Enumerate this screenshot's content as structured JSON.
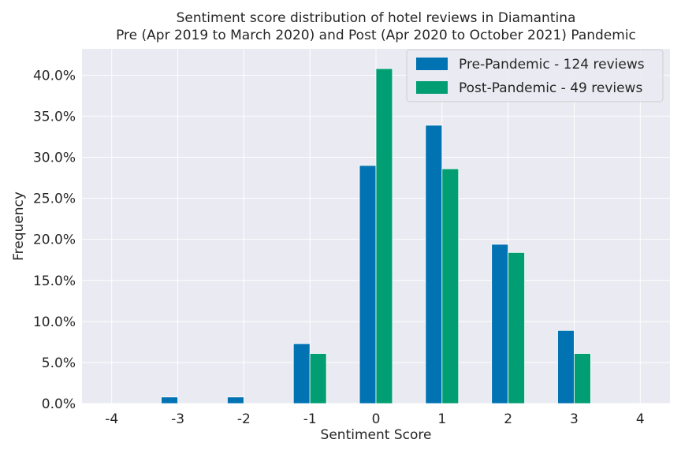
{
  "chart_data": {
    "type": "bar",
    "title_line1": "Sentiment score distribution of hotel reviews in Diamantina",
    "title_line2": "Pre (Apr 2019 to March 2020) and Post (Apr 2020 to October 2021) Pandemic",
    "xlabel": "Sentiment Score",
    "ylabel": "Frequency",
    "x": [
      -4,
      -3,
      -2,
      -1,
      0,
      1,
      2,
      3,
      4
    ],
    "x_tick_labels": [
      "-4",
      "-3",
      "-2",
      "-1",
      "0",
      "1",
      "2",
      "3",
      "4"
    ],
    "xlim": [
      -4.45,
      4.45
    ],
    "ylim": [
      0,
      43.2
    ],
    "y_ticks": [
      0,
      5,
      10,
      15,
      20,
      25,
      30,
      35,
      40
    ],
    "y_tick_labels": [
      "0.0%",
      "5.0%",
      "10.0%",
      "15.0%",
      "20.0%",
      "25.0%",
      "30.0%",
      "35.0%",
      "40.0%"
    ],
    "grid": true,
    "legend_position": "top-right",
    "series": [
      {
        "name": "Pre-Pandemic - 124 reviews",
        "color": "#0173b2",
        "values": [
          0,
          0.8,
          0.8,
          7.3,
          29.0,
          33.9,
          19.4,
          8.9,
          0
        ]
      },
      {
        "name": "Post-Pandemic - 49 reviews",
        "color": "#029e73",
        "values": [
          0,
          0,
          0,
          6.1,
          40.8,
          28.6,
          18.4,
          6.1,
          0
        ]
      }
    ],
    "background": "#eaeaf2",
    "grid_color": "#ffffff"
  }
}
